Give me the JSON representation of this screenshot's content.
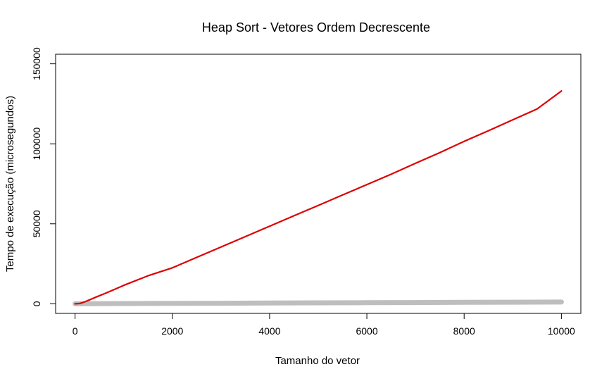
{
  "chart_data": {
    "type": "line",
    "title": "Heap Sort - Vetores Ordem Decrescente",
    "xlabel": "Tamanho do vetor",
    "ylabel": "Tempo de execução (microsegundos)",
    "xlim": [
      -400,
      10400
    ],
    "ylim": [
      -6000,
      156000
    ],
    "xticks": [
      0,
      2000,
      4000,
      6000,
      8000,
      10000
    ],
    "yticks": [
      0,
      50000,
      100000,
      150000
    ],
    "grid": false,
    "legend": "none",
    "series": [
      {
        "color": "#dd0000",
        "x": [
          0,
          100,
          200,
          300,
          400,
          600,
          800,
          1000,
          1500,
          2000,
          2500,
          3000,
          3500,
          4000,
          4500,
          5000,
          5500,
          6000,
          6500,
          7000,
          7500,
          8000,
          8500,
          9000,
          9500,
          10000
        ],
        "y": [
          0,
          200,
          1200,
          2500,
          3800,
          6300,
          8900,
          11500,
          17500,
          22500,
          29000,
          35500,
          42000,
          48500,
          55000,
          61500,
          68000,
          74500,
          81000,
          87800,
          94500,
          101500,
          108200,
          115000,
          121800,
          133000
        ]
      },
      {
        "color": "#bebebe",
        "x": [
          0,
          1000,
          2000,
          3000,
          4000,
          5000,
          6000,
          7000,
          8000,
          9000,
          10000
        ],
        "y": [
          0,
          150,
          250,
          350,
          500,
          600,
          700,
          800,
          900,
          1000,
          1100
        ]
      }
    ]
  }
}
